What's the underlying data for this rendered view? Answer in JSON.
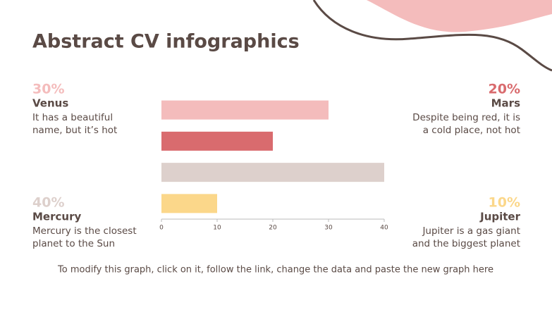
{
  "title": "Abstract CV infographics",
  "callouts": [
    {
      "percent": "30%",
      "name": "Venus",
      "lines": [
        "It has a beautiful",
        "name, but it’s hot"
      ],
      "color": "#f4bcbc",
      "side": "left",
      "row": "top"
    },
    {
      "percent": "20%",
      "name": "Mars",
      "lines": [
        "Despite being red, it is",
        "a cold place, not hot"
      ],
      "color": "#d96b6e",
      "side": "right",
      "row": "top"
    },
    {
      "percent": "40%",
      "name": "Mercury",
      "lines": [
        "Mercury is the closest",
        "planet to the Sun"
      ],
      "color": "#ddd0cc",
      "side": "left",
      "row": "bottom"
    },
    {
      "percent": "10%",
      "name": "Jupiter",
      "lines": [
        "Jupiter is a gas giant",
        "and the biggest planet"
      ],
      "color": "#fbd78a",
      "side": "right",
      "row": "bottom"
    }
  ],
  "footer": "To modify this graph, click on it, follow the link, change the data and paste the new graph here",
  "chart_data": {
    "type": "bar",
    "orientation": "horizontal",
    "categories": [
      null,
      null,
      null,
      null
    ],
    "values": [
      30,
      20,
      40,
      10
    ],
    "colors": [
      "#f4bcbc",
      "#d96b6e",
      "#ddd0cc",
      "#fbd78a"
    ],
    "xlim": [
      0,
      40
    ],
    "xticks": [
      0,
      10,
      20,
      30,
      40
    ],
    "grid": false
  }
}
